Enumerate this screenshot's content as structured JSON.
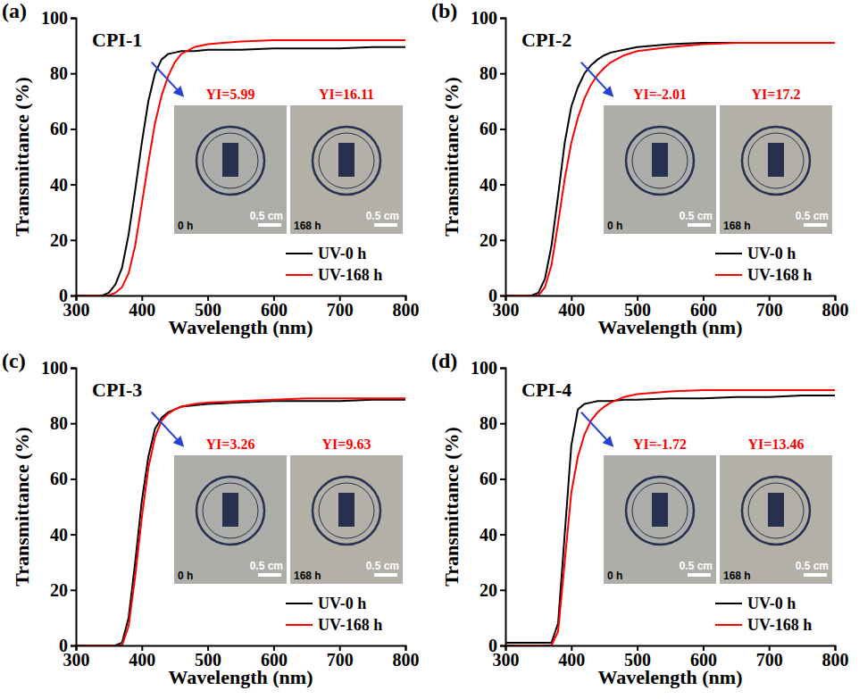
{
  "chart_data": [
    {
      "type": "line",
      "panel": "(a)",
      "title": "CPI-1",
      "x_label": "Wavelength (nm)",
      "y_label": "Transmittance (%)",
      "x": [
        300,
        340,
        350,
        360,
        370,
        380,
        390,
        400,
        410,
        420,
        430,
        440,
        450,
        460,
        480,
        500,
        550,
        600,
        650,
        700,
        750,
        800
      ],
      "series": [
        {
          "name": "UV-0 h",
          "color": "#000000",
          "values": [
            0,
            0,
            1,
            4,
            10,
            22,
            38,
            55,
            70,
            80,
            85,
            87,
            87.5,
            88,
            88,
            88.5,
            88.5,
            89,
            89,
            89,
            89.5,
            89.5
          ]
        },
        {
          "name": "UV-168 h",
          "color": "#ff0000",
          "values": [
            0,
            0,
            0,
            1,
            3,
            8,
            18,
            33,
            48,
            62,
            72,
            79,
            84,
            87,
            89.5,
            90.5,
            91.5,
            92,
            92,
            92,
            92,
            92
          ]
        }
      ],
      "xlim": [
        300,
        800
      ],
      "xticks": [
        300,
        400,
        500,
        600,
        700,
        800
      ],
      "ylim": [
        0,
        100
      ],
      "yticks": [
        0,
        20,
        40,
        60,
        80,
        100
      ],
      "legend": "lower right",
      "insets": [
        {
          "yi_label": "YI=5.99",
          "time_label": "0 h",
          "scale_label": "0.5 cm"
        },
        {
          "yi_label": "YI=16.11",
          "time_label": "168 h",
          "scale_label": "0.5 cm"
        }
      ]
    },
    {
      "type": "line",
      "panel": "(b)",
      "title": "CPI-2",
      "x_label": "Wavelength (nm)",
      "y_label": "Transmittance (%)",
      "x": [
        300,
        340,
        350,
        360,
        370,
        380,
        390,
        400,
        410,
        420,
        430,
        440,
        450,
        460,
        480,
        500,
        550,
        600,
        650,
        700,
        750,
        800
      ],
      "series": [
        {
          "name": "UV-0 h",
          "color": "#000000",
          "values": [
            0,
            0,
            1,
            6,
            18,
            36,
            55,
            68,
            75,
            80,
            83,
            85,
            86.5,
            87.5,
            88.5,
            89.5,
            90.5,
            91,
            91,
            91,
            91,
            91
          ]
        },
        {
          "name": "UV-168 h",
          "color": "#ff0000",
          "values": [
            0,
            0,
            0,
            3,
            11,
            26,
            42,
            55,
            64,
            71,
            76,
            79.5,
            82,
            84,
            86.5,
            88,
            89.5,
            90.5,
            91,
            91,
            91,
            91
          ]
        }
      ],
      "xlim": [
        300,
        800
      ],
      "xticks": [
        300,
        400,
        500,
        600,
        700,
        800
      ],
      "ylim": [
        0,
        100
      ],
      "yticks": [
        0,
        20,
        40,
        60,
        80,
        100
      ],
      "legend": "lower right",
      "insets": [
        {
          "yi_label": "YI=-2.01",
          "time_label": "0 h",
          "scale_label": "0.5 cm"
        },
        {
          "yi_label": "YI=17.2",
          "time_label": "168 h",
          "scale_label": "0.5 cm"
        }
      ]
    },
    {
      "type": "line",
      "panel": "(c)",
      "title": "CPI-3",
      "x_label": "Wavelength (nm)",
      "y_label": "Transmittance (%)",
      "x": [
        300,
        340,
        350,
        360,
        370,
        380,
        390,
        400,
        410,
        420,
        430,
        440,
        450,
        460,
        480,
        500,
        550,
        600,
        650,
        700,
        750,
        800
      ],
      "series": [
        {
          "name": "UV-0 h",
          "color": "#000000",
          "values": [
            0,
            0,
            0,
            0,
            1,
            10,
            30,
            52,
            68,
            78,
            82,
            84,
            85,
            86,
            86.5,
            87,
            87.5,
            88,
            88,
            88,
            88.5,
            88.5
          ]
        },
        {
          "name": "UV-168 h",
          "color": "#ff0000",
          "values": [
            0,
            0,
            0,
            0,
            0,
            7,
            25,
            46,
            64,
            75,
            81,
            83.5,
            85,
            86,
            87,
            87.5,
            88,
            88.5,
            89,
            89,
            89,
            89
          ]
        }
      ],
      "xlim": [
        300,
        800
      ],
      "xticks": [
        300,
        400,
        500,
        600,
        700,
        800
      ],
      "ylim": [
        0,
        100
      ],
      "yticks": [
        0,
        20,
        40,
        60,
        80,
        100
      ],
      "legend": "lower right",
      "insets": [
        {
          "yi_label": "YI=3.26",
          "time_label": "0 h",
          "scale_label": "0.5 cm"
        },
        {
          "yi_label": "YI=9.63",
          "time_label": "168 h",
          "scale_label": "0.5 cm"
        }
      ]
    },
    {
      "type": "line",
      "panel": "(d)",
      "title": "CPI-4",
      "x_label": "Wavelength (nm)",
      "y_label": "Transmittance (%)",
      "x": [
        300,
        340,
        350,
        360,
        370,
        380,
        390,
        400,
        410,
        420,
        430,
        440,
        450,
        460,
        480,
        500,
        550,
        600,
        650,
        700,
        750,
        800
      ],
      "series": [
        {
          "name": "UV-0 h",
          "color": "#000000",
          "values": [
            1,
            1,
            1,
            1,
            1,
            8,
            40,
            72,
            85,
            87,
            87.5,
            88,
            88,
            88,
            88.5,
            88.5,
            89,
            89,
            89.5,
            89.5,
            90,
            90
          ]
        },
        {
          "name": "UV-168 h",
          "color": "#ff0000",
          "values": [
            0,
            0,
            0,
            0,
            0,
            5,
            30,
            55,
            68,
            76,
            81,
            84,
            86,
            87.5,
            89.5,
            90.5,
            91.5,
            92,
            92,
            92,
            92,
            92
          ]
        }
      ],
      "xlim": [
        300,
        800
      ],
      "xticks": [
        300,
        400,
        500,
        600,
        700,
        800
      ],
      "ylim": [
        0,
        100
      ],
      "yticks": [
        0,
        20,
        40,
        60,
        80,
        100
      ],
      "legend": "lower right",
      "insets": [
        {
          "yi_label": "YI=-1.72",
          "time_label": "0 h",
          "scale_label": "0.5 cm"
        },
        {
          "yi_label": "YI=13.46",
          "time_label": "168 h",
          "scale_label": "0.5 cm"
        }
      ]
    }
  ]
}
